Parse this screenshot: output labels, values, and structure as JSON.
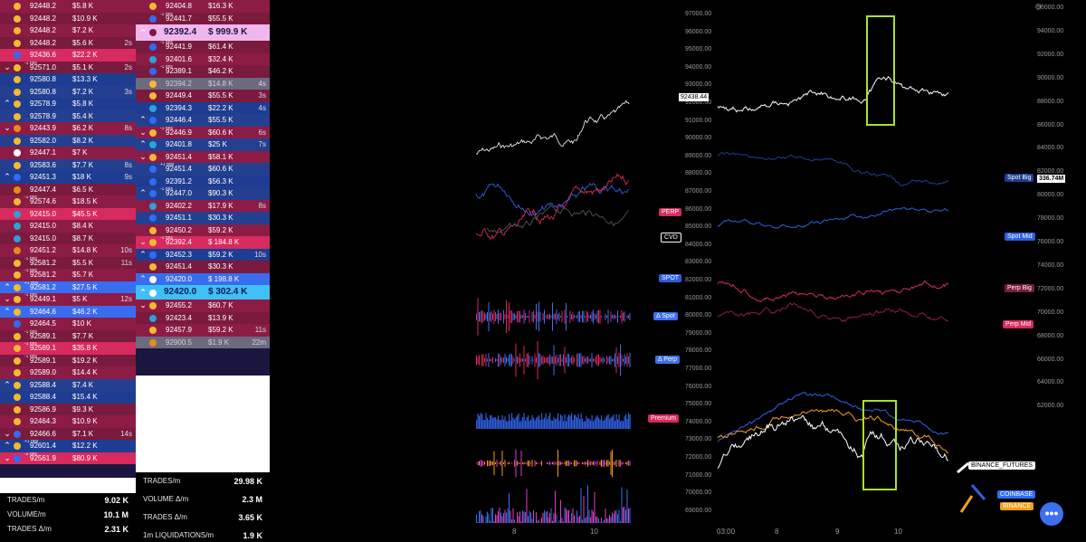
{
  "tape_left": [
    {
      "dir": "",
      "side": "sell",
      "ico": "#f3ba2f",
      "bps": "",
      "price": "92448.2",
      "amt": "$5.8 K",
      "age": ""
    },
    {
      "dir": "",
      "side": "sell",
      "ico": "#f3ba2f",
      "bps": "",
      "price": "92448.2",
      "amt": "$10.9 K",
      "age": ""
    },
    {
      "dir": "",
      "side": "sell",
      "ico": "#f3ba2f",
      "bps": "",
      "price": "92448.2",
      "amt": "$7.2 K",
      "age": ""
    },
    {
      "dir": "",
      "side": "sell",
      "ico": "#f3ba2f",
      "bps": "",
      "price": "92448.2",
      "amt": "$5.6 K",
      "age": "2s"
    },
    {
      "dir": "",
      "side": "bigs",
      "ico": "#2f6df6",
      "bps": "",
      "price": "92436.6",
      "amt": "$22.2 K",
      "age": ""
    },
    {
      "dir": "v",
      "side": "sell",
      "ico": "#f3ba2f",
      "bps": "-1 bps",
      "price": "92571.0",
      "amt": "$5.1 K",
      "age": "2s"
    },
    {
      "dir": "",
      "side": "buy",
      "ico": "#f3ba2f",
      "bps": "",
      "price": "92580.8",
      "amt": "$13.3 K",
      "age": ""
    },
    {
      "dir": "",
      "side": "buy",
      "ico": "#f3ba2f",
      "bps": "",
      "price": "92580.8",
      "amt": "$7.2 K",
      "age": "3s"
    },
    {
      "dir": "^",
      "side": "buy",
      "ico": "#f3ba2f",
      "bps": "",
      "price": "92578.9",
      "amt": "$5.8 K",
      "age": ""
    },
    {
      "dir": "",
      "side": "buy",
      "ico": "#f3ba2f",
      "bps": "",
      "price": "92578.9",
      "amt": "$5.4 K",
      "age": ""
    },
    {
      "dir": "v",
      "side": "sell",
      "ico": "#e88a1a",
      "bps": "",
      "price": "92443.9",
      "amt": "$6.2 K",
      "age": "8s"
    },
    {
      "dir": "",
      "side": "buy",
      "ico": "#f3ba2f",
      "bps": "",
      "price": "92582.0",
      "amt": "$8.2 K",
      "age": ""
    },
    {
      "dir": "",
      "side": "sell",
      "ico": "#ffffff",
      "bps": "",
      "price": "92447.1",
      "amt": "$7 K",
      "age": ""
    },
    {
      "dir": "",
      "side": "buy",
      "ico": "#f3ba2f",
      "bps": "",
      "price": "92583.6",
      "amt": "$7.7 K",
      "age": "8s"
    },
    {
      "dir": "^",
      "side": "buy",
      "ico": "#2f6df6",
      "bps": "",
      "price": "92451.3",
      "amt": "$18 K",
      "age": "9s"
    },
    {
      "dir": "",
      "side": "sell",
      "ico": "#e88a1a",
      "bps": "",
      "price": "92447.4",
      "amt": "$6.5 K",
      "age": ""
    },
    {
      "dir": "",
      "side": "sell",
      "ico": "#f3ba2f",
      "bps": "-1 bps",
      "price": "92574.6",
      "amt": "$18.5 K",
      "age": ""
    },
    {
      "dir": "",
      "side": "bigs",
      "ico": "#29a3d6",
      "bps": "",
      "price": "92415.0",
      "amt": "$45.5 K",
      "age": ""
    },
    {
      "dir": "",
      "side": "sell",
      "ico": "#29a3d6",
      "bps": "",
      "price": "92415.0",
      "amt": "$8.4 K",
      "age": ""
    },
    {
      "dir": "",
      "side": "sell",
      "ico": "#29a3d6",
      "bps": "",
      "price": "92415.0",
      "amt": "$8.7 K",
      "age": ""
    },
    {
      "dir": "",
      "side": "sell",
      "ico": "#e88a1a",
      "bps": "",
      "price": "92451.2",
      "amt": "$14.8 K",
      "age": "10s"
    },
    {
      "dir": "",
      "side": "sell",
      "ico": "#f3ba2f",
      "bps": "-1 bps",
      "price": "92581.2",
      "amt": "$5.5 K",
      "age": "11s"
    },
    {
      "dir": "",
      "side": "sell",
      "ico": "#f3ba2f",
      "bps": "-1 bps",
      "price": "92581.2",
      "amt": "$5.7 K",
      "age": ""
    },
    {
      "dir": "^",
      "side": "bigb",
      "ico": "#f3ba2f",
      "bps": "+1 bps",
      "price": "92581.2",
      "amt": "$27.5 K",
      "age": ""
    },
    {
      "dir": "v",
      "side": "sell",
      "ico": "#f3ba2f",
      "bps": "-1 bps",
      "price": "92449.1",
      "amt": "$5 K",
      "age": "12s"
    },
    {
      "dir": "^",
      "side": "bigb",
      "ico": "#f3ba2f",
      "bps": "",
      "price": "92464.6",
      "amt": "$46.2 K",
      "age": ""
    },
    {
      "dir": "",
      "side": "sell",
      "ico": "#2f6df6",
      "bps": "",
      "price": "92464.5",
      "amt": "$10 K",
      "age": ""
    },
    {
      "dir": "",
      "side": "sell",
      "ico": "#f3ba2f",
      "bps": "-1 bps",
      "price": "92589.1",
      "amt": "$7.7 K",
      "age": ""
    },
    {
      "dir": "",
      "side": "bigs",
      "ico": "#f3ba2f",
      "bps": "-1 bps",
      "price": "92589.1",
      "amt": "$35.8 K",
      "age": ""
    },
    {
      "dir": "",
      "side": "sell",
      "ico": "#f3ba2f",
      "bps": "-1 bps",
      "price": "92589.1",
      "amt": "$19.2 K",
      "age": ""
    },
    {
      "dir": "",
      "side": "sell",
      "ico": "#f3ba2f",
      "bps": "",
      "price": "92589.0",
      "amt": "$14.4 K",
      "age": ""
    },
    {
      "dir": "^",
      "side": "buy",
      "ico": "#f3ba2f",
      "bps": "",
      "price": "92588.4",
      "amt": "$7.4 K",
      "age": ""
    },
    {
      "dir": "",
      "side": "buy",
      "ico": "#f3ba2f",
      "bps": "",
      "price": "92588.4",
      "amt": "$15.4 K",
      "age": ""
    },
    {
      "dir": "",
      "side": "sell",
      "ico": "#f3ba2f",
      "bps": "",
      "price": "92586.9",
      "amt": "$9.3 K",
      "age": ""
    },
    {
      "dir": "",
      "side": "sell",
      "ico": "#f3ba2f",
      "bps": "",
      "price": "92464.3",
      "amt": "$10.9 K",
      "age": ""
    },
    {
      "dir": "v",
      "side": "sell",
      "ico": "#2f6df6",
      "bps": "",
      "price": "92466.6",
      "amt": "$7.1 K",
      "age": "14s"
    },
    {
      "dir": "^",
      "side": "buy",
      "ico": "#f3ba2f",
      "bps": "+1 bps",
      "price": "92601.4",
      "amt": "$12.2 K",
      "age": ""
    },
    {
      "dir": "v",
      "side": "bigs",
      "ico": "#2f6df6",
      "bps": "-2 bps",
      "price": "92561.9",
      "amt": "$80.9 K",
      "age": ""
    }
  ],
  "tape_right": [
    {
      "dir": "",
      "side": "sell",
      "ico": "#f3ba2f",
      "bps": "",
      "price": "92404.8",
      "amt": "$16.3 K",
      "age": ""
    },
    {
      "dir": "",
      "side": "sell",
      "ico": "#2f6df6",
      "bps": "-1 bps",
      "price": "92441.7",
      "amt": "$55.5 K",
      "age": ""
    },
    {
      "dir": "^",
      "side": "pink",
      "ico": "#7a1a3e",
      "bps": "",
      "price": "92392.4",
      "amt": "$ 999.9 K",
      "age": ""
    },
    {
      "dir": "",
      "side": "sell",
      "ico": "#2f6df6",
      "bps": "-1 bps",
      "price": "92441.9",
      "amt": "$61.4 K",
      "age": ""
    },
    {
      "dir": "",
      "side": "sell",
      "ico": "#29a3d6",
      "bps": "",
      "price": "92401.6",
      "amt": "$32.4 K",
      "age": ""
    },
    {
      "dir": "",
      "side": "sell",
      "ico": "#2f6df6",
      "bps": "-1 bps",
      "price": "92389.1",
      "amt": "$46.2 K",
      "age": ""
    },
    {
      "dir": "",
      "side": "gray",
      "ico": "#f3ba2f",
      "bps": "",
      "price": "92394.2",
      "amt": "$14.8 K",
      "age": "4s"
    },
    {
      "dir": "",
      "side": "sell",
      "ico": "#f3ba2f",
      "bps": "",
      "price": "92449.4",
      "amt": "$55.5 K",
      "age": "3s"
    },
    {
      "dir": "",
      "side": "buy",
      "ico": "#29a3d6",
      "bps": "",
      "price": "92394.3",
      "amt": "$22.2 K",
      "age": "4s"
    },
    {
      "dir": "^",
      "side": "buy",
      "ico": "#2f6df6",
      "bps": "",
      "price": "92446.4",
      "amt": "$55.5 K",
      "age": ""
    },
    {
      "dir": "v",
      "side": "sell",
      "ico": "#f3ba2f",
      "bps": "-1 bps",
      "price": "92446.9",
      "amt": "$60.6 K",
      "age": "6s"
    },
    {
      "dir": "^",
      "side": "buy",
      "ico": "#29a3d6",
      "bps": "",
      "price": "92401.8",
      "amt": "$25 K",
      "age": "7s"
    },
    {
      "dir": "v",
      "side": "sell",
      "ico": "#f3ba2f",
      "bps": "",
      "price": "92451.4",
      "amt": "$58.1 K",
      "age": ""
    },
    {
      "dir": "",
      "side": "buy",
      "ico": "#2f6df6",
      "bps": "+1 bps",
      "price": "92451.4",
      "amt": "$60.6 K",
      "age": ""
    },
    {
      "dir": "",
      "side": "buy",
      "ico": "#2f6df6",
      "bps": "",
      "price": "92391.2",
      "amt": "$56.3 K",
      "age": ""
    },
    {
      "dir": "^",
      "side": "buy",
      "ico": "#2f6df6",
      "bps": "-1 bps",
      "price": "92447.0",
      "amt": "$90.3 K",
      "age": ""
    },
    {
      "dir": "",
      "side": "sell",
      "ico": "#29a3d6",
      "bps": "",
      "price": "92402.2",
      "amt": "$17.9 K",
      "age": "8s"
    },
    {
      "dir": "",
      "side": "buy",
      "ico": "#2f6df6",
      "bps": "",
      "price": "92451.1",
      "amt": "$30.3 K",
      "age": ""
    },
    {
      "dir": "",
      "side": "sell",
      "ico": "#f3ba2f",
      "bps": "",
      "price": "92450.2",
      "amt": "$59.2 K",
      "age": ""
    },
    {
      "dir": "v",
      "side": "bigs",
      "ico": "#f3ba2f",
      "bps": "-1 bps",
      "price": "92392.4",
      "amt": "$ 184.8 K",
      "age": ""
    },
    {
      "dir": "^",
      "side": "buy",
      "ico": "#2f6df6",
      "bps": "",
      "price": "92452.3",
      "amt": "$59.2 K",
      "age": "10s"
    },
    {
      "dir": "",
      "side": "sell",
      "ico": "#f3ba2f",
      "bps": "",
      "price": "92451.4",
      "amt": "$30.3 K",
      "age": ""
    },
    {
      "dir": "^",
      "side": "bigb",
      "ico": "#ffffff",
      "bps": "",
      "price": "92420.0",
      "amt": "$ 198.8 K",
      "age": ""
    },
    {
      "dir": "^",
      "side": "cyan",
      "ico": "#ffffff",
      "bps": "",
      "price": "92420.0",
      "amt": "$ 302.4 K",
      "age": ""
    },
    {
      "dir": "v",
      "side": "sell",
      "ico": "#f3ba2f",
      "bps": "",
      "price": "92455.2",
      "amt": "$60.7 K",
      "age": ""
    },
    {
      "dir": "",
      "side": "sell",
      "ico": "#29a3d6",
      "bps": "",
      "price": "92423.4",
      "amt": "$13.9 K",
      "age": ""
    },
    {
      "dir": "",
      "side": "sell",
      "ico": "#f3ba2f",
      "bps": "",
      "price": "92457.9",
      "amt": "$59.2 K",
      "age": "11s"
    },
    {
      "dir": "",
      "side": "gray",
      "ico": "#e88a1a",
      "bps": "",
      "price": "92900.5",
      "amt": "$1.9 K",
      "age": "22m"
    }
  ],
  "stats_left": [
    {
      "label": "TRADES/m",
      "value": "9.02 K"
    },
    {
      "label": "VOLUME/m",
      "value": "10.1 M"
    },
    {
      "label": "TRADES Δ/m",
      "value": "2.31 K"
    }
  ],
  "stats_right": [
    {
      "label": "TRADES/m",
      "value": "29.98 K"
    },
    {
      "label": "VOLUME Δ/m",
      "value": "2.3 M"
    },
    {
      "label": "TRADES Δ/m",
      "value": "3.65 K"
    },
    {
      "label": "1m LIQUIDATIONS/m",
      "value": "1.9 K"
    }
  ],
  "left_chart_tags": [
    {
      "text": "PERP",
      "bg": "#d72a5e",
      "color": "#ffffff"
    },
    {
      "text": "CVD",
      "bg": "#000000",
      "color": "#ffffff"
    },
    {
      "text": "SPOT",
      "bg": "#2f5fe0",
      "color": "#ffffff"
    },
    {
      "text": "Δ Spot",
      "bg": "#3d6ff0",
      "color": "#ffffff"
    },
    {
      "text": "Δ Perp",
      "bg": "#3d6ff0",
      "color": "#ffffff"
    },
    {
      "text": "Premium",
      "bg": "#d72a5e",
      "color": "#ffffff"
    }
  ],
  "mid_axis": [
    "97000.00",
    "96000.00",
    "95000.00",
    "94000.00",
    "93000.00",
    "92000.00",
    "91000.00",
    "90000.00",
    "89000.00",
    "88000.00",
    "87000.00",
    "86000.00",
    "85000.00",
    "84000.00",
    "83000.00",
    "82000.00",
    "81000.00",
    "80000.00",
    "79000.00",
    "78000.00",
    "77000.00",
    "76000.00",
    "75000.00",
    "74000.00",
    "73000.00",
    "72000.00",
    "71000.00",
    "70000.00",
    "69000.00"
  ],
  "right_axis": [
    "96000.00",
    "94000.00",
    "92000.00",
    "90000.00",
    "88000.00",
    "86000.00",
    "84000.00",
    "82000.00",
    "80000.00",
    "78000.00",
    "76000.00",
    "74000.00",
    "72000.00",
    "70000.00",
    "68000.00",
    "66000.00",
    "64000.00",
    "62000.00"
  ],
  "price_box": "92438.44",
  "value_box": "336.74M",
  "right_tags": [
    {
      "text": "Spot Big",
      "bg": "#1e3d92",
      "color": "#ffffff"
    },
    {
      "text": "Spot Mid",
      "bg": "#2f5fe0",
      "color": "#ffffff"
    },
    {
      "text": "Perp Big",
      "bg": "#7a1a3e",
      "color": "#ffffff"
    },
    {
      "text": "Perp Mid",
      "bg": "#d72a5e",
      "color": "#ffffff"
    },
    {
      "text": "BINANCE_FUTURES",
      "bg": "#ffffff",
      "color": "#000000"
    },
    {
      "text": "COINBASE",
      "bg": "#2f6df6",
      "color": "#ffffff"
    },
    {
      "text": "BINANCE",
      "bg": "#f39c1f",
      "color": "#ffffff"
    }
  ],
  "x_axis_left": [
    "8",
    "10"
  ],
  "x_axis_right": [
    "03:00",
    "8",
    "9",
    "10"
  ],
  "menu_fab": "•••",
  "colors": {
    "sell": "#8c1c45",
    "buy": "#1e3d92",
    "accent": "#3d6ff0",
    "highlight": "#a6e22e"
  }
}
